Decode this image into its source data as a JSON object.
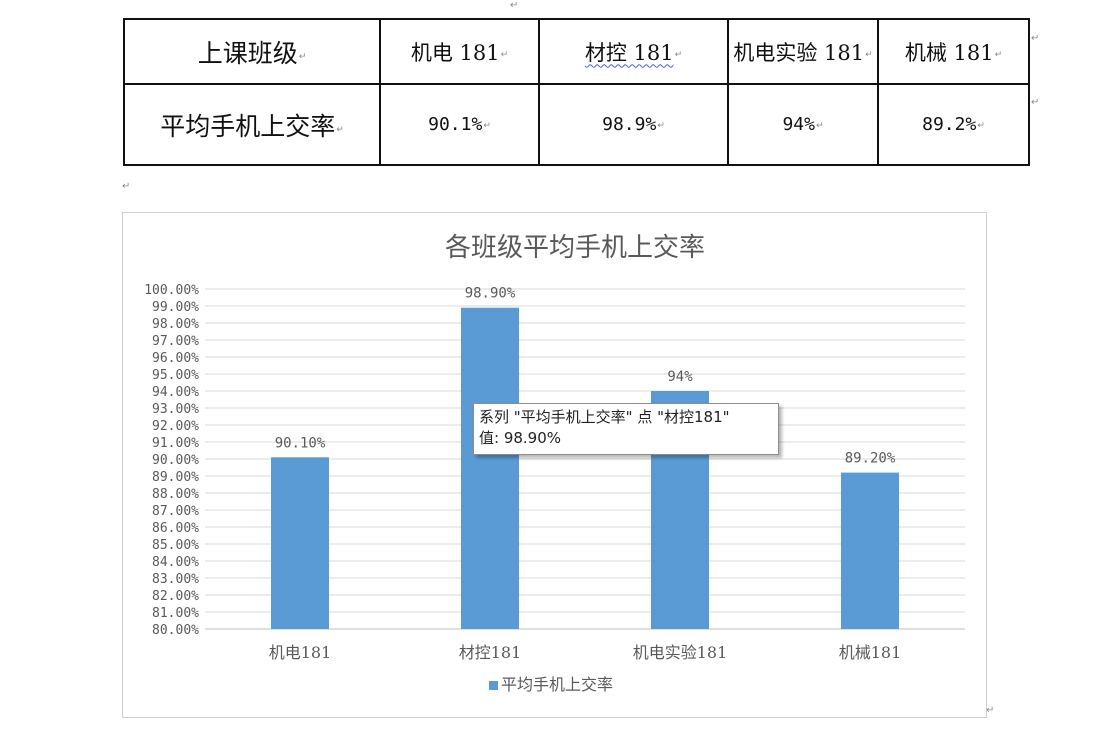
{
  "table": {
    "header_label": "上课班级",
    "row_label": "平均手机上交率",
    "classes": [
      "机电 181",
      "材控 181",
      "机电实验 181",
      "机械 181"
    ],
    "rates": [
      "90.1%",
      "98.9%",
      "94%",
      "89.2%"
    ]
  },
  "chart_data": {
    "type": "bar",
    "title": "各班级平均手机上交率",
    "categories": [
      "机电181",
      "材控181",
      "机电实验181",
      "机械181"
    ],
    "series": [
      {
        "name": "平均手机上交率",
        "values": [
          90.1,
          98.9,
          94.0,
          89.2
        ],
        "color": "#5b9bd5"
      }
    ],
    "data_labels": [
      "90.10%",
      "98.90%",
      "94%",
      "89.20%"
    ],
    "ylim": [
      80,
      100
    ],
    "ytick_step": 1,
    "ytick_labels": [
      "80.00%",
      "81.00%",
      "82.00%",
      "83.00%",
      "84.00%",
      "85.00%",
      "86.00%",
      "87.00%",
      "88.00%",
      "89.00%",
      "90.00%",
      "91.00%",
      "92.00%",
      "93.00%",
      "94.00%",
      "95.00%",
      "96.00%",
      "97.00%",
      "98.00%",
      "99.00%",
      "100.00%"
    ],
    "grid": true,
    "legend_position": "bottom",
    "gridline_color": "#d9d9d9",
    "text_color": "#595959"
  },
  "tooltip": {
    "line1": "系列 \"平均手机上交率\" 点 \"材控181\"",
    "line2": "值: 98.90%"
  }
}
